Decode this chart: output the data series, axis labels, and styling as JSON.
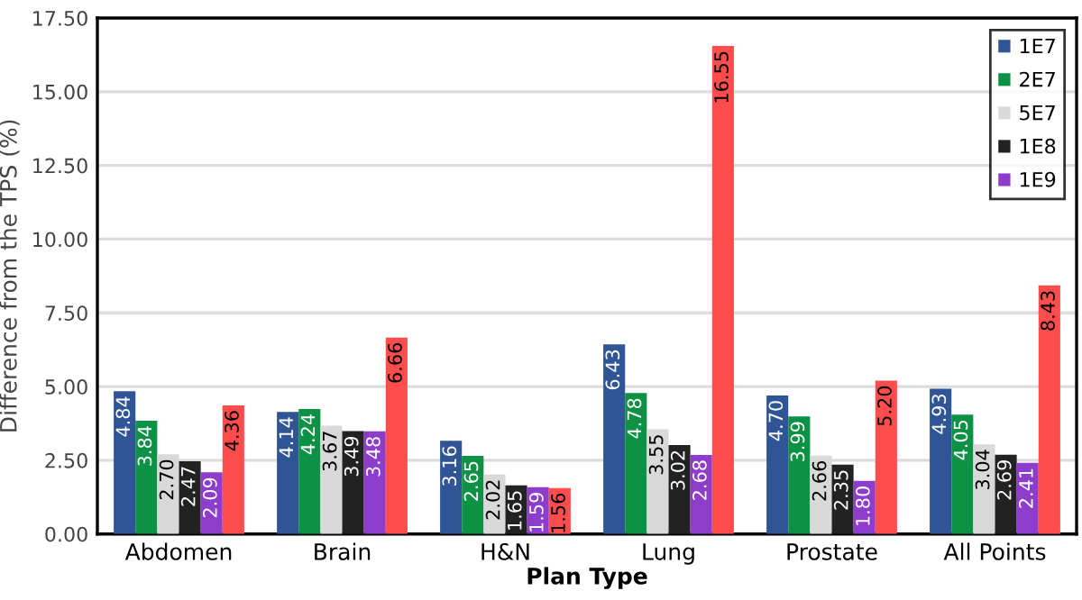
{
  "chart_data": {
    "type": "bar",
    "xlabel": "Plan Type",
    "ylabel": "Difference from the TPS (%)",
    "categories": [
      "Abdomen",
      "Brain",
      "H&N",
      "Lung",
      "Prostate",
      "All Points"
    ],
    "series": [
      {
        "name": "1E7",
        "color": "#2f5597",
        "values": [
          4.84,
          4.14,
          3.16,
          6.43,
          4.7,
          4.93
        ],
        "value_labels": [
          "4.84",
          "4.14",
          "3.16",
          "6.43",
          "4.70",
          "4.93"
        ]
      },
      {
        "name": "2E7",
        "color": "#0d9145",
        "values": [
          3.84,
          4.24,
          2.65,
          4.78,
          3.99,
          4.05
        ],
        "value_labels": [
          "3.84",
          "4.24",
          "2.65",
          "4.78",
          "3.99",
          "4.05"
        ]
      },
      {
        "name": "5E7",
        "color": "#d9d9d9",
        "values": [
          2.7,
          3.67,
          2.02,
          3.55,
          2.66,
          3.04
        ],
        "value_labels": [
          "2.70",
          "3.67",
          "2.02",
          "3.55",
          "2.66",
          "3.04"
        ]
      },
      {
        "name": "1E8",
        "color": "#222222",
        "values": [
          2.47,
          3.49,
          1.65,
          3.02,
          2.35,
          2.69
        ],
        "value_labels": [
          "2.47",
          "3.49",
          "1.65",
          "3.02",
          "2.35",
          "2.69"
        ]
      },
      {
        "name": "1E9",
        "color": "#8e3ccb",
        "values": [
          2.09,
          3.48,
          1.59,
          2.68,
          1.8,
          2.41
        ],
        "value_labels": [
          "2.09",
          "3.48",
          "1.59",
          "2.68",
          "1.80",
          "2.41"
        ]
      },
      {
        "color": "#ff4d4d",
        "values": [
          4.36,
          6.66,
          1.56,
          16.55,
          5.2,
          8.43
        ],
        "value_labels": [
          "4.36",
          "6.66",
          "1.56",
          "16.55",
          "5.20",
          "8.43"
        ]
      }
    ],
    "ylim": [
      0,
      17.5
    ],
    "yticks": [
      {
        "value": 0,
        "label": "0.00"
      },
      {
        "value": 2.5,
        "label": "2.50"
      },
      {
        "value": 5,
        "label": "5.00"
      },
      {
        "value": 7.5,
        "label": "7.50"
      },
      {
        "value": 10,
        "label": "10.00"
      },
      {
        "value": 12.5,
        "label": "12.50"
      },
      {
        "value": 15,
        "label": "15.00"
      },
      {
        "value": 17.5,
        "label": "17.50"
      }
    ],
    "grid": "y",
    "legend": "top right"
  }
}
